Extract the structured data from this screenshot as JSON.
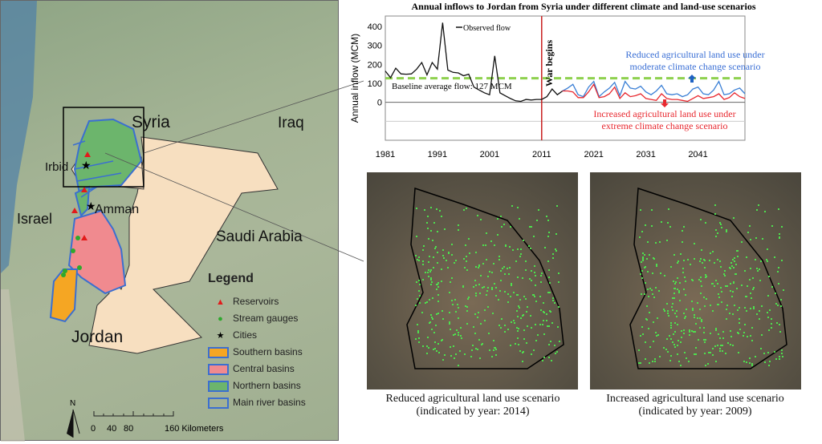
{
  "map": {
    "labels": {
      "syria": "Syria",
      "iraq": "Iraq",
      "irbid": "Irbid",
      "amman": "Amman",
      "israel": "Israel",
      "saudi": "Saudi Arabia",
      "jordan": "Jordan"
    },
    "legend": {
      "title": "Legend",
      "items": [
        {
          "label": "Reservoirs",
          "symbol": "triangle",
          "color": "#e21b1b"
        },
        {
          "label": "Stream gauges",
          "symbol": "circle",
          "color": "#2ea82e"
        },
        {
          "label": "Cities",
          "symbol": "star",
          "color": "#000000"
        },
        {
          "label": "Southern basins",
          "symbol": "fill",
          "color": "#f5a623"
        },
        {
          "label": "Central basins",
          "symbol": "fill",
          "color": "#f08a8f"
        },
        {
          "label": "Northern basins",
          "symbol": "fill",
          "color": "#6cb56c"
        },
        {
          "label": "Main river basins",
          "symbol": "outline",
          "color": "#3b6fd0"
        }
      ]
    },
    "north": "N",
    "scale": {
      "ticks": [
        "0",
        "40",
        "80",
        "160 Kilometers"
      ]
    }
  },
  "chart_data": {
    "type": "line",
    "title": "Annual inflows to Jordan from Syria under different climate and land-use scenarios",
    "ylabel": "Annual inflow (MCM)",
    "xlabel": "",
    "xlim": [
      1981,
      2050
    ],
    "ylim": [
      -200,
      455
    ],
    "xticks": [
      "1981",
      "1991",
      "2001",
      "2011",
      "2021",
      "2031",
      "2041"
    ],
    "yticks": [
      "0",
      "100",
      "200",
      "300",
      "400"
    ],
    "series": [
      {
        "name": "Observed flow",
        "color": "#111111",
        "x": [
          1981,
          1982,
          1983,
          1984,
          1985,
          1986,
          1987,
          1988,
          1989,
          1990,
          1991,
          1992,
          1993,
          1994,
          1995,
          1996,
          1997,
          1998,
          1999,
          2000,
          2001,
          2002,
          2003,
          2004,
          2005,
          2006,
          2007,
          2008,
          2009,
          2010,
          2011,
          2012,
          2013,
          2014,
          2015
        ],
        "values": [
          165,
          130,
          180,
          150,
          148,
          150,
          175,
          210,
          145,
          210,
          175,
          420,
          170,
          158,
          155,
          140,
          148,
          80,
          65,
          50,
          40,
          245,
          50,
          35,
          20,
          8,
          5,
          15,
          12,
          15,
          15,
          30,
          70,
          40,
          60
        ]
      },
      {
        "name": "Reduced agricultural land use under moderate climate change scenario",
        "color": "#3a7fd5",
        "x": [
          2015,
          2016,
          2017,
          2018,
          2019,
          2020,
          2021,
          2022,
          2023,
          2024,
          2025,
          2026,
          2027,
          2028,
          2029,
          2030,
          2031,
          2032,
          2033,
          2034,
          2035,
          2036,
          2037,
          2038,
          2039,
          2040,
          2041,
          2042,
          2043,
          2044,
          2045,
          2046,
          2047,
          2048,
          2049,
          2050
        ],
        "values": [
          60,
          75,
          95,
          40,
          30,
          80,
          110,
          30,
          55,
          75,
          105,
          35,
          110,
          75,
          70,
          85,
          55,
          40,
          60,
          90,
          45,
          40,
          45,
          30,
          40,
          70,
          80,
          45,
          40,
          65,
          110,
          40,
          45,
          65,
          75,
          45
        ]
      },
      {
        "name": "Increased agricultural land use under extreme climate change scenario",
        "color": "#e8282f",
        "x": [
          2015,
          2016,
          2017,
          2018,
          2019,
          2020,
          2021,
          2022,
          2023,
          2024,
          2025,
          2026,
          2027,
          2028,
          2029,
          2030,
          2031,
          2032,
          2033,
          2034,
          2035,
          2036,
          2037,
          2038,
          2039,
          2040,
          2041,
          2042,
          2043,
          2044,
          2045,
          2046,
          2047,
          2048,
          2049,
          2050
        ],
        "values": [
          60,
          60,
          55,
          25,
          25,
          55,
          95,
          25,
          30,
          45,
          80,
          20,
          50,
          30,
          35,
          45,
          20,
          15,
          10,
          45,
          20,
          15,
          15,
          10,
          5,
          20,
          35,
          20,
          25,
          30,
          45,
          15,
          25,
          50,
          30,
          20
        ]
      }
    ],
    "annotations": {
      "baseline": "Baseline average flow: 127 MCM",
      "baseline_value": 127,
      "baseline_color": "#8fd14f",
      "war": "War begins",
      "war_year": 2011,
      "war_color": "#c81e1e",
      "blue_text_1": "Reduced agricultural land use under",
      "blue_text_2": "moderate climate change scenario",
      "red_text_1": "Increased agricultural land use under",
      "red_text_2": "extreme climate change scenario",
      "legend_label": "Observed flow"
    }
  },
  "images": [
    {
      "caption_1": "Reduced agricultural land use scenario",
      "caption_2": "(indicated by year: 2014)"
    },
    {
      "caption_1": "Increased agricultural land use scenario",
      "caption_2": "(indicated by year: 2009)"
    }
  ]
}
